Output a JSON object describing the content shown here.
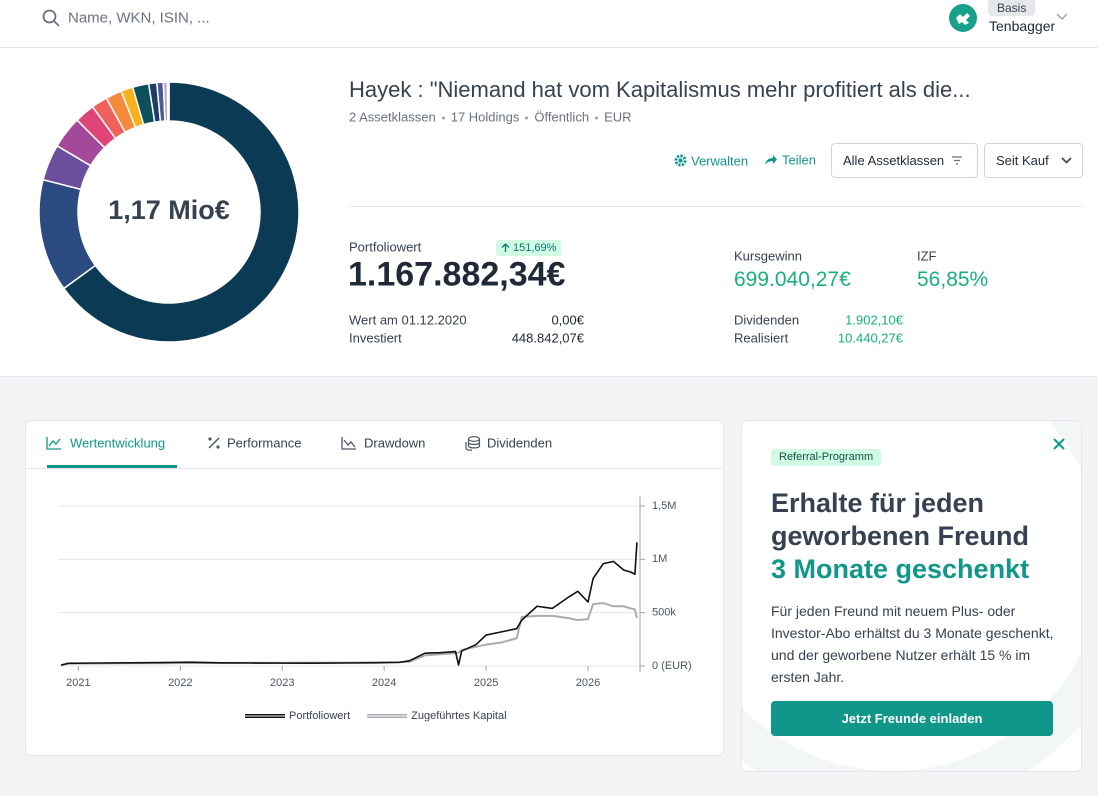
{
  "search": {
    "placeholder": "Name, WKN, ISIN, ..."
  },
  "user": {
    "plan": "Basis",
    "name": "Tenbagger"
  },
  "portfolio": {
    "title": "Hayek : \"Niemand hat vom Kapitalismus mehr profitiert als die...",
    "meta": [
      "2 Assetklassen",
      "17 Holdings",
      "Öffentlich",
      "EUR"
    ],
    "actions": {
      "manage": "Verwalten",
      "share": "Teilen",
      "filter": "Alle Assetklassen",
      "period": "Seit Kauf"
    }
  },
  "stats": {
    "value_label": "Portfoliowert",
    "value": "1.167.882,34€",
    "change": "151,69%",
    "start_label": "Wert am 01.12.2020",
    "start_value": "0,00€",
    "invested_label": "Investiert",
    "invested_value": "448.842,07€",
    "gain_label": "Kursgewinn",
    "gain_value": "699.040,27€",
    "irr_label": "IZF",
    "irr_value": "56,85%",
    "dividends_label": "Dividenden",
    "dividends_value": "1.902,10€",
    "realized_label": "Realisiert",
    "realized_value": "10.440,27€"
  },
  "tabs": [
    "Wertentwicklung",
    "Performance",
    "Drawdown",
    "Dividenden"
  ],
  "referral": {
    "badge": "Referral-Programm",
    "heading": "Erhalte für jeden geworbenen Freund",
    "highlight": "3 Monate geschenkt",
    "text": "Für jeden Freund mit neuem Plus- oder Investor-Abo erhältst du 3 Monate geschenkt, und der geworbene Nutzer erhält 15 % im ersten Jahr.",
    "button": "Jetzt Freunde einladen"
  },
  "chart_data": [
    {
      "type": "pie",
      "label": "1,17 Mio€",
      "values": [
        65,
        14,
        4.5,
        4,
        2.5,
        2,
        2,
        1.5,
        2,
        1,
        0.8,
        0.5,
        0.2
      ],
      "colors": [
        "#0b3a55",
        "#2b4a80",
        "#6b4f9e",
        "#a4499a",
        "#e0457a",
        "#f0605d",
        "#f58a3c",
        "#f5b21a",
        "#0e4f5c",
        "#1d3c6b",
        "#4a5a8a",
        "#b9a6d6",
        "#d8cde8"
      ]
    },
    {
      "type": "line",
      "x": [
        2020.83,
        2020.9,
        2021.2,
        2021.5,
        2021.8,
        2022.1,
        2022.4,
        2022.7,
        2023.0,
        2023.3,
        2023.6,
        2023.9,
        2024.15,
        2024.25,
        2024.4,
        2024.55,
        2024.7,
        2024.73,
        2024.76,
        2024.9,
        2025.0,
        2025.15,
        2025.3,
        2025.35,
        2025.5,
        2025.65,
        2025.8,
        2025.9,
        2026.0,
        2026.05,
        2026.15,
        2026.25,
        2026.35,
        2026.42,
        2026.46,
        2026.48
      ],
      "xlim": [
        2020.8,
        2026.51
      ],
      "xticks": [
        2021,
        2022,
        2023,
        2024,
        2025,
        2026
      ],
      "ylim": [
        0,
        1500000
      ],
      "yticks": [
        {
          "value": 0,
          "label": "0 (EUR)"
        },
        {
          "value": 500000,
          "label": "500k"
        },
        {
          "value": 1000000,
          "label": "1M"
        },
        {
          "value": 1500000,
          "label": "1,5M"
        }
      ],
      "grid": true,
      "legend": "bottom",
      "series": [
        {
          "name": "Portfoliowert",
          "color": "#111111",
          "values": [
            8000,
            25000,
            28000,
            30000,
            32000,
            36000,
            30000,
            28000,
            27000,
            26000,
            28000,
            30000,
            34000,
            50000,
            120000,
            125000,
            135000,
            10000,
            140000,
            200000,
            290000,
            320000,
            350000,
            430000,
            560000,
            540000,
            640000,
            700000,
            600000,
            820000,
            960000,
            980000,
            900000,
            880000,
            860000,
            1160000
          ]
        },
        {
          "name": "Zugeführtes Kapital",
          "color": "#a9adb3",
          "values": [
            8000,
            22000,
            24000,
            26000,
            26000,
            28000,
            28000,
            30000,
            30000,
            32000,
            32000,
            34000,
            36000,
            40000,
            100000,
            110000,
            120000,
            125000,
            150000,
            180000,
            200000,
            220000,
            260000,
            460000,
            470000,
            470000,
            450000,
            430000,
            440000,
            580000,
            590000,
            560000,
            560000,
            540000,
            530000,
            450000
          ]
        }
      ]
    }
  ]
}
